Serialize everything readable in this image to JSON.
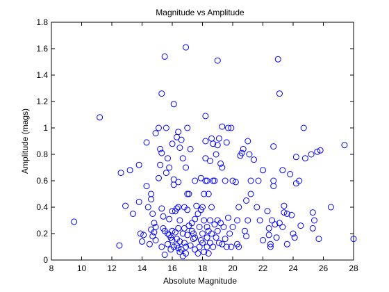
{
  "chart_data": {
    "type": "scatter",
    "title": "Magnitude vs Amplitude",
    "xlabel": "Absolute Magnitude",
    "ylabel": "Amplitude (mags)",
    "xlim": [
      8,
      28
    ],
    "ylim": [
      0,
      1.8
    ],
    "xticks": [
      "8",
      "10",
      "12",
      "14",
      "16",
      "18",
      "20",
      "22",
      "24",
      "26",
      "28"
    ],
    "yticks": [
      "0",
      "0.2",
      "0.4",
      "0.6",
      "0.8",
      "1",
      "1.2",
      "1.4",
      "1.6",
      "1.8"
    ],
    "grid": false,
    "marker_color": "#0000ff",
    "marker": "open-circle",
    "series": [
      {
        "points": [
          [
            9.5,
            0.29
          ],
          [
            11.2,
            1.08
          ],
          [
            12.5,
            0.11
          ],
          [
            12.6,
            0.66
          ],
          [
            12.9,
            0.41
          ],
          [
            13.2,
            0.68
          ],
          [
            13.4,
            0.35
          ],
          [
            13.8,
            0.72
          ],
          [
            13.8,
            0.44
          ],
          [
            13.9,
            0.2
          ],
          [
            14.0,
            0.14
          ],
          [
            14.1,
            0.19
          ],
          [
            14.3,
            0.89
          ],
          [
            14.3,
            0.56
          ],
          [
            14.4,
            0.4
          ],
          [
            14.5,
            0.12
          ],
          [
            14.6,
            0.46
          ],
          [
            14.6,
            0.5
          ],
          [
            14.6,
            0.23
          ],
          [
            14.7,
            0.35
          ],
          [
            14.7,
            0.18
          ],
          [
            14.8,
            0.28
          ],
          [
            14.8,
            0.21
          ],
          [
            14.9,
            0.96
          ],
          [
            14.9,
            0.25
          ],
          [
            14.9,
            0.15
          ],
          [
            15.1,
            1.0
          ],
          [
            15.1,
            0.62
          ],
          [
            15.2,
            0.84
          ],
          [
            15.2,
            0.72
          ],
          [
            15.3,
            0.81
          ],
          [
            15.3,
            1.26
          ],
          [
            15.3,
            0.39
          ],
          [
            15.3,
            0.1
          ],
          [
            15.4,
            0.33
          ],
          [
            15.4,
            0.24
          ],
          [
            15.5,
            1.54
          ],
          [
            15.5,
            0.22
          ],
          [
            15.5,
            0.04
          ],
          [
            15.6,
            1.0
          ],
          [
            15.6,
            0.66
          ],
          [
            15.7,
            0.77
          ],
          [
            15.7,
            0.2
          ],
          [
            15.7,
            0.12
          ],
          [
            15.8,
            0.7
          ],
          [
            15.8,
            0.31
          ],
          [
            15.8,
            0.19
          ],
          [
            15.9,
            0.17
          ],
          [
            15.9,
            0.08
          ],
          [
            16.0,
            0.88
          ],
          [
            16.0,
            0.37
          ],
          [
            16.0,
            0.22
          ],
          [
            16.0,
            0.15
          ],
          [
            16.1,
            1.18
          ],
          [
            16.1,
            0.61
          ],
          [
            16.1,
            0.57
          ],
          [
            16.1,
            0.1
          ],
          [
            16.2,
            0.37
          ],
          [
            16.2,
            0.21
          ],
          [
            16.3,
            0.93
          ],
          [
            16.3,
            0.39
          ],
          [
            16.3,
            0.16
          ],
          [
            16.3,
            0.11
          ],
          [
            16.4,
            0.97
          ],
          [
            16.4,
            0.59
          ],
          [
            16.4,
            0.4
          ],
          [
            16.4,
            0.24
          ],
          [
            16.4,
            0.09
          ],
          [
            16.5,
            0.85
          ],
          [
            16.5,
            0.3
          ],
          [
            16.5,
            0.14
          ],
          [
            16.5,
            0.06
          ],
          [
            16.6,
            0.91
          ],
          [
            16.6,
            0.08
          ],
          [
            16.7,
            0.77
          ],
          [
            16.7,
            0.2
          ],
          [
            16.7,
            0.03
          ],
          [
            16.8,
            0.4
          ],
          [
            16.8,
            0.24
          ],
          [
            16.8,
            0.13
          ],
          [
            16.9,
            1.61
          ],
          [
            16.9,
            0.7
          ],
          [
            16.9,
            0.1
          ],
          [
            16.9,
            0.05
          ],
          [
            17.0,
            1.0
          ],
          [
            17.0,
            0.5
          ],
          [
            17.0,
            0.38
          ],
          [
            17.0,
            0.19
          ],
          [
            17.1,
            0.5
          ],
          [
            17.1,
            0.26
          ],
          [
            17.2,
            0.84
          ],
          [
            17.2,
            0.11
          ],
          [
            17.3,
            0.28
          ],
          [
            17.3,
            0.22
          ],
          [
            17.4,
            0.2
          ],
          [
            17.4,
            0.16
          ],
          [
            17.5,
            0.6
          ],
          [
            17.5,
            0.31
          ],
          [
            17.5,
            0.17
          ],
          [
            17.5,
            0.08
          ],
          [
            17.6,
            0.41
          ],
          [
            17.7,
            0.35
          ],
          [
            17.7,
            0.05
          ],
          [
            17.8,
            0.25
          ],
          [
            17.8,
            0.1
          ],
          [
            17.9,
            0.62
          ],
          [
            17.9,
            0.38
          ],
          [
            17.9,
            0.15
          ],
          [
            18.0,
            0.4
          ],
          [
            18.0,
            0.2
          ],
          [
            18.0,
            0.13
          ],
          [
            18.1,
            0.5
          ],
          [
            18.1,
            0.3
          ],
          [
            18.1,
            0.06
          ],
          [
            18.2,
            1.09
          ],
          [
            18.2,
            0.9
          ],
          [
            18.2,
            0.77
          ],
          [
            18.2,
            0.6
          ],
          [
            18.3,
            0.6
          ],
          [
            18.3,
            0.25
          ],
          [
            18.3,
            0.17
          ],
          [
            18.3,
            0.1
          ],
          [
            18.4,
            0.5
          ],
          [
            18.4,
            0.22
          ],
          [
            18.4,
            0.05
          ],
          [
            18.5,
            0.75
          ],
          [
            18.5,
            0.3
          ],
          [
            18.5,
            0.13
          ],
          [
            18.6,
            0.92
          ],
          [
            18.6,
            0.4
          ],
          [
            18.6,
            0.2
          ],
          [
            18.7,
            0.88
          ],
          [
            18.7,
            0.6
          ],
          [
            18.7,
            0.1
          ],
          [
            18.8,
            0.6
          ],
          [
            18.8,
            0.27
          ],
          [
            18.9,
            0.8
          ],
          [
            18.9,
            0.17
          ],
          [
            19.0,
            1.51
          ],
          [
            19.0,
            0.87
          ],
          [
            19.0,
            0.3
          ],
          [
            19.0,
            0.22
          ],
          [
            19.1,
            0.92
          ],
          [
            19.1,
            0.13
          ],
          [
            19.2,
            0.73
          ],
          [
            19.2,
            0.28
          ],
          [
            19.3,
            1.01
          ],
          [
            19.3,
            0.7
          ],
          [
            19.3,
            0.12
          ],
          [
            19.4,
            0.25
          ],
          [
            19.5,
            0.6
          ],
          [
            19.5,
            0.16
          ],
          [
            19.6,
            0.89
          ],
          [
            19.6,
            0.1
          ],
          [
            19.7,
            1.0
          ],
          [
            19.7,
            0.32
          ],
          [
            19.8,
            0.2
          ],
          [
            19.9,
            1.0
          ],
          [
            19.9,
            0.1
          ],
          [
            20.0,
            0.6
          ],
          [
            20.0,
            0.25
          ],
          [
            20.2,
            0.59
          ],
          [
            20.3,
            0.3
          ],
          [
            20.3,
            0.12
          ],
          [
            20.4,
            0.4
          ],
          [
            20.4,
            0.1
          ],
          [
            20.5,
            0.79
          ],
          [
            20.6,
            0.81
          ],
          [
            20.7,
            0.84
          ],
          [
            20.8,
            0.22
          ],
          [
            20.9,
            0.45
          ],
          [
            20.9,
            0.18
          ],
          [
            21.0,
            0.9
          ],
          [
            21.0,
            0.3
          ],
          [
            21.1,
            0.8
          ],
          [
            21.2,
            0.6
          ],
          [
            21.2,
            0.5
          ],
          [
            21.4,
            0.76
          ],
          [
            21.6,
            0.4
          ],
          [
            21.7,
            0.6
          ],
          [
            21.8,
            0.3
          ],
          [
            22.0,
            0.68
          ],
          [
            22.0,
            0.15
          ],
          [
            22.3,
            0.37
          ],
          [
            22.4,
            0.24
          ],
          [
            22.4,
            0.19
          ],
          [
            22.5,
            0.12
          ],
          [
            22.5,
            0.1
          ],
          [
            22.6,
            0.3
          ],
          [
            22.7,
            0.86
          ],
          [
            22.7,
            0.6
          ],
          [
            22.7,
            0.56
          ],
          [
            22.8,
            0.27
          ],
          [
            22.9,
            0.17
          ],
          [
            23.0,
            1.52
          ],
          [
            23.1,
            1.26
          ],
          [
            23.1,
            0.28
          ],
          [
            23.3,
            0.68
          ],
          [
            23.3,
            0.25
          ],
          [
            23.4,
            0.41
          ],
          [
            23.4,
            0.36
          ],
          [
            23.6,
            0.35
          ],
          [
            23.6,
            0.12
          ],
          [
            23.8,
            0.65
          ],
          [
            23.9,
            0.34
          ],
          [
            24.0,
            0.2
          ],
          [
            24.1,
            0.17
          ],
          [
            24.2,
            0.78
          ],
          [
            24.2,
            0.58
          ],
          [
            24.4,
            0.6
          ],
          [
            24.5,
            0.26
          ],
          [
            24.7,
            1.0
          ],
          [
            24.8,
            0.77
          ],
          [
            25.2,
            0.8
          ],
          [
            25.3,
            0.36
          ],
          [
            25.3,
            0.24
          ],
          [
            25.4,
            0.3
          ],
          [
            25.6,
            0.82
          ],
          [
            25.7,
            0.16
          ],
          [
            25.8,
            0.83
          ],
          [
            26.5,
            0.4
          ],
          [
            27.4,
            0.87
          ],
          [
            28.0,
            0.16
          ]
        ]
      }
    ]
  }
}
